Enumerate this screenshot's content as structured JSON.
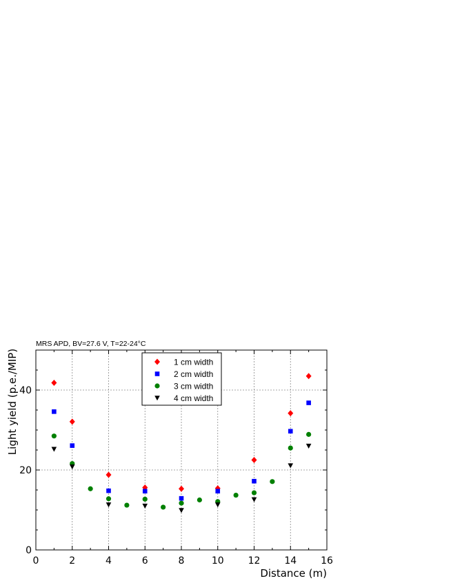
{
  "chart_data": {
    "type": "scatter",
    "title": "MRS APD, BV=27.6 V, T=22-24°C",
    "xlabel": "Distance (m)",
    "ylabel": "Light yield (p.e./MIP)",
    "xlim": [
      0,
      16
    ],
    "ylim": [
      0,
      50
    ],
    "x_ticks": [
      0,
      2,
      4,
      6,
      8,
      10,
      12,
      14,
      16
    ],
    "y_ticks": [
      0,
      20,
      40
    ],
    "grid": true,
    "legend_position": "top-center",
    "series": [
      {
        "name": "1 cm width",
        "marker": "diamond",
        "color": "#ff0000",
        "points": [
          [
            1,
            41.8
          ],
          [
            2,
            32.1
          ],
          [
            4,
            18.8
          ],
          [
            6,
            15.6
          ],
          [
            8,
            15.3
          ],
          [
            10,
            15.4
          ],
          [
            12,
            22.5
          ],
          [
            14,
            34.2
          ],
          [
            15,
            43.5
          ]
        ]
      },
      {
        "name": "2 cm width",
        "marker": "square",
        "color": "#0000ff",
        "points": [
          [
            1,
            34.6
          ],
          [
            2,
            26.1
          ],
          [
            4,
            14.8
          ],
          [
            6,
            14.7
          ],
          [
            8,
            12.9
          ],
          [
            10,
            14.7
          ],
          [
            12,
            17.2
          ],
          [
            14,
            29.7
          ],
          [
            15,
            36.8
          ]
        ]
      },
      {
        "name": "3 cm width",
        "marker": "circle",
        "color": "#008000",
        "points": [
          [
            1,
            28.5
          ],
          [
            2,
            21.6
          ],
          [
            3,
            15.3
          ],
          [
            4,
            12.8
          ],
          [
            5,
            11.2
          ],
          [
            6,
            12.7
          ],
          [
            7,
            10.7
          ],
          [
            8,
            11.7
          ],
          [
            9,
            12.5
          ],
          [
            10,
            12.1
          ],
          [
            11,
            13.7
          ],
          [
            12,
            14.3
          ],
          [
            13,
            17.1
          ],
          [
            14,
            25.5
          ],
          [
            15,
            28.9
          ]
        ]
      },
      {
        "name": "4 cm width",
        "marker": "triangle-down",
        "color": "#000000",
        "points": [
          [
            1,
            25.2
          ],
          [
            2,
            20.8
          ],
          [
            4,
            11.3
          ],
          [
            6,
            11.0
          ],
          [
            8,
            9.9
          ],
          [
            10,
            11.3
          ],
          [
            12,
            12.6
          ],
          [
            14,
            21.1
          ],
          [
            15,
            26.0
          ]
        ]
      }
    ]
  }
}
